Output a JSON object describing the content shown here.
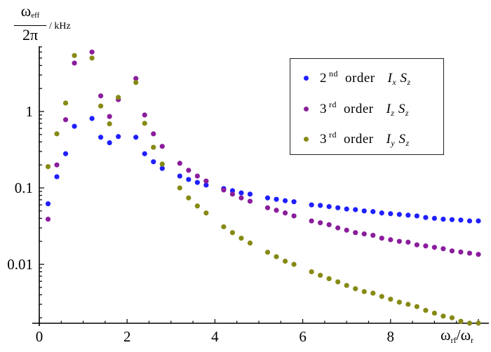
{
  "chart_data": {
    "type": "scatter",
    "title": "",
    "xlabel": "ω_rf/ω_r",
    "ylabel": "ω_eff / 2π / kHz",
    "x_scale": "linear",
    "y_scale": "log",
    "xlim": [
      0,
      10.3
    ],
    "ylim": [
      0.00175,
      12
    ],
    "x_ticks": [
      0,
      2,
      4,
      6,
      8
    ],
    "y_ticks": [
      0.01,
      0.1,
      1
    ],
    "y_tick_labels": [
      "0.01",
      "0.1",
      "1"
    ],
    "grid": false,
    "legend_position": "upper right",
    "x": [
      0.2,
      0.4,
      0.6,
      0.8,
      1.2,
      1.4,
      1.6,
      1.8,
      2.2,
      2.4,
      2.6,
      2.8,
      3.2,
      3.4,
      3.6,
      3.8,
      4.2,
      4.4,
      4.6,
      4.8,
      5.2,
      5.4,
      5.6,
      5.8,
      6.2,
      6.4,
      6.6,
      6.8,
      7.0,
      7.2,
      7.4,
      7.6,
      7.8,
      8.0,
      8.2,
      8.4,
      8.6,
      8.8,
      9.0,
      9.2,
      9.4,
      9.6,
      9.8,
      10.0
    ],
    "series": [
      {
        "name": "2nd order Ix Sz",
        "color": "#1f1fff",
        "values": [
          0.062,
          0.14,
          0.28,
          0.64,
          0.81,
          0.46,
          0.39,
          0.47,
          0.46,
          0.28,
          0.22,
          0.18,
          0.143,
          0.129,
          0.118,
          0.109,
          0.098,
          0.092,
          0.086,
          0.083,
          0.074,
          0.071,
          0.068,
          0.066,
          0.06,
          0.059,
          0.057,
          0.055,
          0.053,
          0.052,
          0.05,
          0.049,
          0.047,
          0.046,
          0.045,
          0.044,
          0.043,
          0.041,
          0.04,
          0.039,
          0.0385,
          0.038,
          0.037,
          0.037
        ]
      },
      {
        "name": "3rd order Iz Sz",
        "color": "#8a1d9c",
        "values": [
          0.039,
          0.2,
          0.78,
          4.3,
          6.0,
          1.6,
          0.86,
          1.43,
          2.7,
          0.9,
          0.51,
          0.35,
          0.21,
          0.17,
          0.143,
          0.123,
          0.094,
          0.083,
          0.074,
          0.067,
          0.055,
          0.051,
          0.047,
          0.043,
          0.037,
          0.035,
          0.033,
          0.03,
          0.028,
          0.026,
          0.025,
          0.024,
          0.022,
          0.021,
          0.02,
          0.0195,
          0.018,
          0.0174,
          0.0167,
          0.016,
          0.015,
          0.0145,
          0.014,
          0.0135
        ]
      },
      {
        "name": "3rd order Iy Sz",
        "color": "#868a14",
        "values": [
          0.19,
          0.51,
          1.29,
          5.4,
          5.0,
          1.18,
          0.69,
          1.53,
          2.4,
          0.7,
          0.34,
          0.205,
          0.1,
          0.074,
          0.058,
          0.047,
          0.031,
          0.026,
          0.022,
          0.019,
          0.0144,
          0.0126,
          0.011,
          0.01,
          0.008,
          0.0072,
          0.0065,
          0.0059,
          0.0053,
          0.0048,
          0.0044,
          0.0042,
          0.0038,
          0.0035,
          0.0032,
          0.003,
          0.0028,
          0.0025,
          0.0023,
          0.0021,
          0.002,
          0.0018,
          0.0017,
          0.0017
        ]
      }
    ]
  },
  "axes": {
    "y_label_num": "ω",
    "y_label_num_sub": "eff",
    "y_label_den": "2π",
    "y_label_unit": "/ kHz",
    "x_label_main": "ω",
    "x_label_sub1": "rf",
    "x_label_slash": "/ω",
    "x_label_sub2": "r"
  },
  "legend": {
    "items": [
      {
        "num": "2",
        "sup": "nd",
        "word": "order",
        "op1": "I",
        "op1_sub": "x",
        "op2": "S",
        "op2_sub": "z",
        "color": "#1f1fff"
      },
      {
        "num": "3",
        "sup": "rd",
        "word": "order",
        "op1": "I",
        "op1_sub": "z",
        "op2": "S",
        "op2_sub": "z",
        "color": "#8a1d9c"
      },
      {
        "num": "3",
        "sup": "rd",
        "word": "order",
        "op1": "I",
        "op1_sub": "y",
        "op2": "S",
        "op2_sub": "z",
        "color": "#868a14"
      }
    ]
  }
}
